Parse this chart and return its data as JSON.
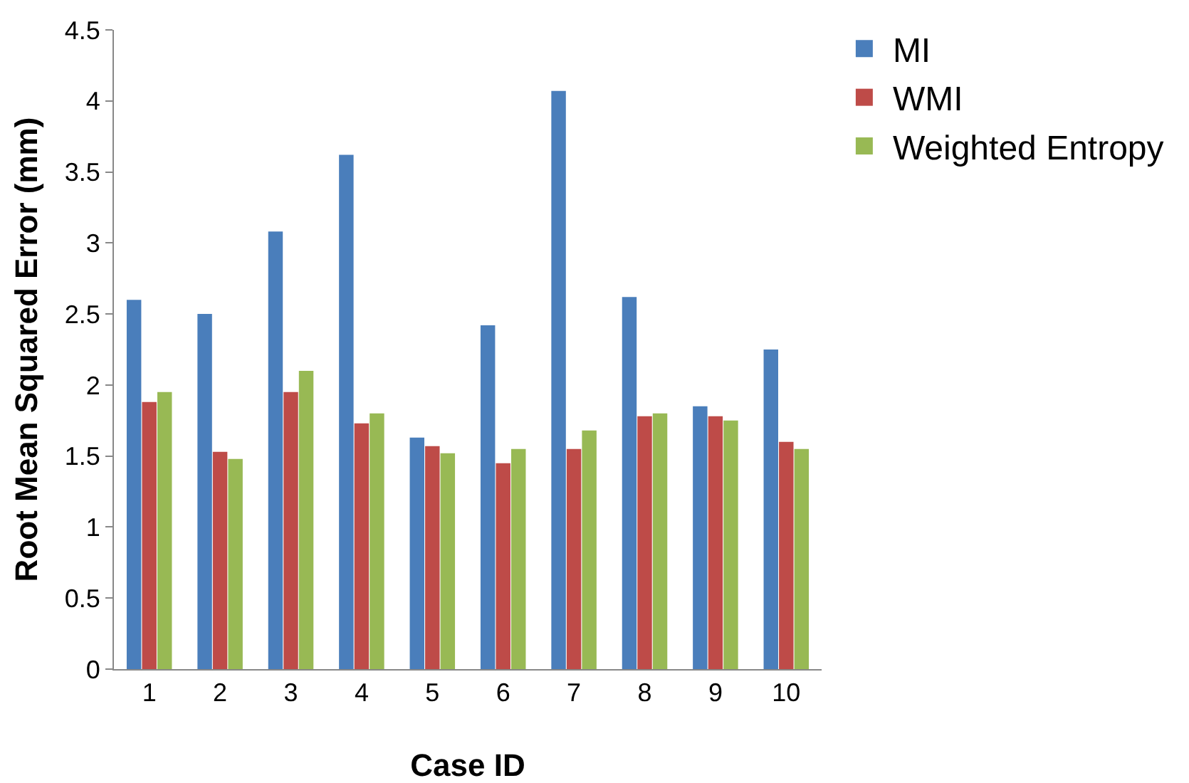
{
  "chart_data": {
    "type": "bar",
    "xlabel": "Case ID",
    "ylabel": "Root Mean Squared Error (mm)",
    "categories": [
      "1",
      "2",
      "3",
      "4",
      "5",
      "6",
      "7",
      "8",
      "9",
      "10"
    ],
    "series": [
      {
        "name": "MI",
        "color": "#4a7ebb",
        "values": [
          2.6,
          2.5,
          3.08,
          3.62,
          1.63,
          2.42,
          4.07,
          2.62,
          1.85,
          2.25
        ]
      },
      {
        "name": "WMI",
        "color": "#be4b48",
        "values": [
          1.88,
          1.53,
          1.95,
          1.73,
          1.57,
          1.45,
          1.55,
          1.78,
          1.78,
          1.6
        ]
      },
      {
        "name": "Weighted Entropy",
        "color": "#98b954",
        "values": [
          1.95,
          1.48,
          2.1,
          1.8,
          1.52,
          1.55,
          1.68,
          1.8,
          1.75,
          1.55
        ]
      }
    ],
    "ylim": [
      0,
      4.5
    ],
    "yticks": [
      0,
      0.5,
      1,
      1.5,
      2,
      2.5,
      3,
      3.5,
      4,
      4.5
    ],
    "grid": false,
    "legend": "top right"
  }
}
